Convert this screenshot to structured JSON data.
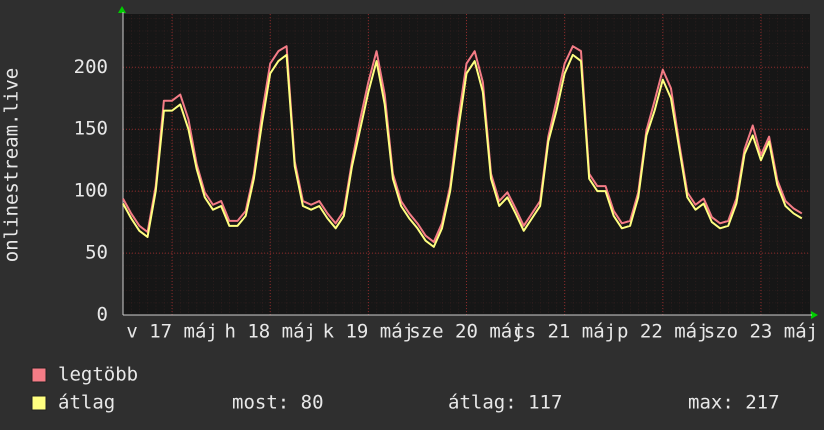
{
  "chart_data": {
    "type": "line",
    "y_label": "onlinestream.live",
    "x": [
      0,
      2,
      4,
      6,
      8,
      10,
      12,
      14,
      16,
      18,
      20,
      22,
      24,
      26,
      28,
      30,
      32,
      34,
      36,
      38,
      40,
      42,
      44,
      46,
      48,
      50,
      52,
      54,
      56,
      58,
      60,
      62,
      64,
      66,
      68,
      70,
      72,
      74,
      76,
      78,
      80,
      82,
      84,
      86,
      88,
      90,
      92,
      94,
      96,
      98,
      100,
      102,
      104,
      106,
      108,
      110,
      112,
      114,
      116,
      118,
      120,
      122,
      124,
      126,
      128,
      130,
      132,
      134,
      136,
      138,
      140,
      142,
      144,
      146,
      148,
      150,
      152,
      154,
      156,
      158,
      160,
      162,
      164,
      166
    ],
    "xlim": [
      0,
      168
    ],
    "xticks": [
      {
        "value": 12,
        "label": "v 17 máj"
      },
      {
        "value": 36,
        "label": "h 18 máj"
      },
      {
        "value": 60,
        "label": "k 19 máj"
      },
      {
        "value": 84,
        "label": "sze 20 máj"
      },
      {
        "value": 108,
        "label": "cs 21 máj"
      },
      {
        "value": 132,
        "label": "p 22 máj"
      },
      {
        "value": 156,
        "label": "szo 23 máj"
      }
    ],
    "ylim": [
      0,
      243
    ],
    "yticks": [
      0,
      50,
      100,
      150,
      200
    ],
    "grid": true,
    "series": [
      {
        "name": "legtöbb",
        "color": "#f47c86",
        "values": [
          94,
          82,
          72,
          67,
          104,
          173,
          173,
          178,
          158,
          122,
          99,
          89,
          92,
          76,
          76,
          84,
          114,
          163,
          203,
          213,
          217,
          124,
          92,
          89,
          92,
          82,
          74,
          84,
          124,
          158,
          188,
          213,
          178,
          114,
          92,
          82,
          74,
          64,
          59,
          74,
          104,
          158,
          203,
          213,
          188,
          114,
          92,
          99,
          86,
          72,
          82,
          92,
          144,
          173,
          203,
          217,
          213,
          114,
          104,
          104,
          84,
          74,
          76,
          99,
          149,
          173,
          198,
          183,
          139,
          99,
          89,
          94,
          79,
          74,
          76,
          94,
          134,
          153,
          129,
          144,
          109,
          92,
          86,
          82
        ]
      },
      {
        "name": "átlag",
        "color": "#ffff80",
        "values": [
          90,
          78,
          68,
          63,
          100,
          165,
          165,
          170,
          150,
          118,
          95,
          85,
          88,
          72,
          72,
          80,
          110,
          155,
          195,
          205,
          210,
          120,
          88,
          85,
          88,
          78,
          70,
          80,
          120,
          150,
          180,
          205,
          170,
          110,
          88,
          78,
          70,
          60,
          55,
          70,
          100,
          150,
          195,
          205,
          180,
          110,
          88,
          95,
          82,
          68,
          78,
          88,
          140,
          165,
          195,
          210,
          205,
          110,
          100,
          100,
          80,
          70,
          72,
          95,
          145,
          165,
          190,
          175,
          135,
          95,
          85,
          90,
          75,
          70,
          72,
          90,
          130,
          145,
          125,
          140,
          105,
          88,
          82,
          78
        ]
      }
    ],
    "summary": [
      "most: 80",
      "átlag: 117",
      "max: 217"
    ]
  }
}
